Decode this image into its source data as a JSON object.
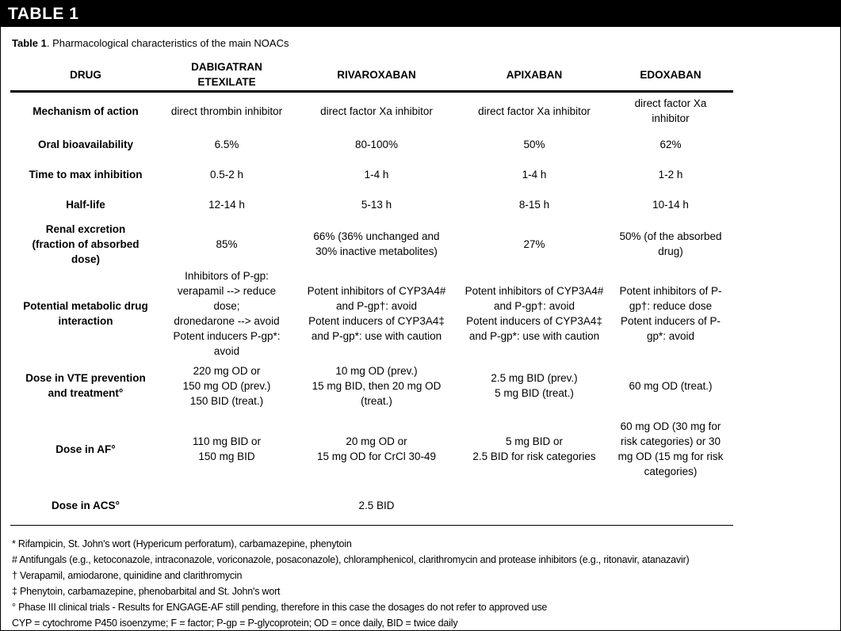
{
  "title_bar": {
    "title": "TABLE 1"
  },
  "caption": {
    "label": "Table 1",
    "text": ". Pharmacological characteristics of the main NOACs"
  },
  "table": {
    "columns": [
      "DRUG",
      "DABIGATRAN\nETEXILATE",
      "RIVAROXABAN",
      "APIXABAN",
      "EDOXABAN"
    ],
    "rows": [
      {
        "label": "Mechanism of action",
        "cells": [
          "direct thrombin inhibitor",
          "direct factor Xa inhibitor",
          "direct factor Xa inhibitor",
          "direct factor Xa\ninhibitor"
        ]
      },
      {
        "label": "Oral bioavailability",
        "cells": [
          "6.5%",
          "80-100%",
          "50%",
          "62%"
        ]
      },
      {
        "label": "Time to max inhibition",
        "cells": [
          "0.5-2 h",
          "1-4 h",
          "1-4 h",
          "1-2 h"
        ]
      },
      {
        "label": "Half-life",
        "cells": [
          "12-14 h",
          "5-13 h",
          "8-15 h",
          "10-14 h"
        ]
      },
      {
        "label": "Renal excretion\n(fraction of absorbed\ndose)",
        "cells": [
          "85%",
          "66% (36% unchanged and\n30% inactive metabolites)",
          "27%",
          "50% (of the absorbed\ndrug)"
        ]
      },
      {
        "label": "Potential metabolic drug\ninteraction",
        "cells": [
          "Inhibitors of P-gp:\nverapamil --> reduce dose;\ndronedarone --> avoid\nPotent inducers P-gp*:\navoid",
          "Potent inhibitors of CYP3A4#\nand P-gp†: avoid\nPotent inducers of CYP3A4‡\nand P-gp*: use with caution",
          "Potent inhibitors of CYP3A4#\nand P-gp†: avoid\nPotent inducers of CYP3A4‡\nand P-gp*: use with caution",
          "Potent inhibitors of P-\ngp†: reduce dose\nPotent inducers of P-\ngp*: avoid"
        ]
      },
      {
        "label": "Dose in VTE prevention\nand treatment°",
        "cells": [
          "220 mg OD or\n150 mg OD (prev.)\n150 BID (treat.)",
          "10 mg OD (prev.)\n15 mg BID, then 20 mg OD\n(treat.)",
          "2.5 mg BID (prev.)\n5 mg BID (treat.)",
          "60 mg OD (treat.)"
        ]
      },
      {
        "label": "Dose in AF°",
        "cells": [
          "110 mg BID or\n150 mg BID",
          "20 mg OD or\n15 mg OD for CrCl 30-49",
          "5 mg BID or\n2.5 BID for risk categories",
          "60 mg OD (30 mg for\nrisk categories) or 30\nmg OD (15 mg for risk\ncategories)"
        ]
      },
      {
        "label": "Dose in ACS°",
        "cells": [
          "",
          "2.5 BID",
          "",
          ""
        ]
      }
    ]
  },
  "footnotes": [
    "* Rifampicin, St. John's wort (Hypericum perforatum), carbamazepine, phenytoin",
    "# Antifungals (e.g., ketoconazole, intraconazole, voriconazole, posaconazole), chloramphenicol, clarithromycin and protease inhibitors (e.g., ritonavir, atanazavir)",
    "† Verapamil, amiodarone, quinidine and clarithromycin",
    "‡ Phenytoin, carbamazepine, phenobarbital and St. John's wort",
    "° Phase III clinical trials - Results for ENGAGE-AF still pending, therefore in this case the dosages do not refer to approved use",
    "CYP = cytochrome P450 isoenzyme; F = factor; P-gp = P-glycoprotein; OD = once daily, BID = twice daily"
  ]
}
